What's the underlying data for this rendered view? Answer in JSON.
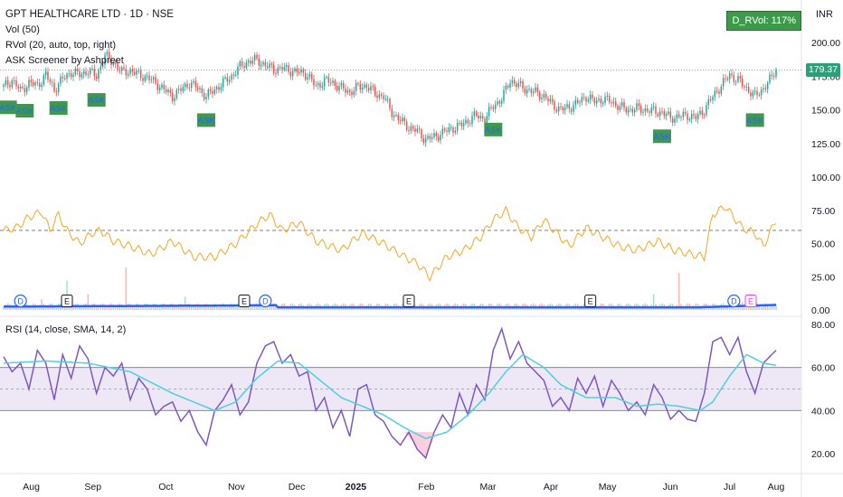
{
  "header": {
    "title": "GPT HEALTHCARE LTD · 1D · NSE",
    "vol_legend": "Vol (50)",
    "rvol_legend": "RVol (20, auto, top, right)",
    "screener_legend": "ASK Screener by Ashpreet",
    "rsi_legend": "RSI (14, close, SMA, 14, 2)",
    "currency": "INR",
    "rvol_badge": "D_RVol: 117%",
    "last_price": "179.37"
  },
  "colors": {
    "up": "#26a69a",
    "down": "#ef5350",
    "rvol_line": "#f5a623",
    "volume_ma": "#2962ff",
    "rsi": "#7e57c2",
    "rsi_ma": "#4dd0e1",
    "rsi_band": "#ede7f6",
    "ask_box": "#3d9a4a",
    "ask_text": "#2962ff"
  },
  "chart_data": {
    "type": "candlestick",
    "x_ticks": [
      "Aug",
      "Sep",
      "Oct",
      "Nov",
      "Dec",
      "2025",
      "Feb",
      "Mar",
      "Apr",
      "May",
      "Jun",
      "Jul",
      "Aug"
    ],
    "price_axis_ticks": [
      "200.00",
      "175.00",
      "150.00",
      "125.00",
      "100.00",
      "75.00",
      "50.00",
      "25.00",
      "0.00"
    ],
    "rsi_axis_ticks": [
      "80.00",
      "60.00",
      "40.00",
      "20.00"
    ],
    "price_keypoints": [
      [
        0,
        167
      ],
      [
        4,
        172
      ],
      [
        8,
        164
      ],
      [
        12,
        170
      ],
      [
        16,
        168
      ],
      [
        20,
        176
      ],
      [
        24,
        165
      ],
      [
        28,
        173
      ],
      [
        32,
        178
      ],
      [
        36,
        176
      ],
      [
        40,
        179
      ],
      [
        44,
        175
      ],
      [
        48,
        190
      ],
      [
        52,
        185
      ],
      [
        56,
        178
      ],
      [
        60,
        179
      ],
      [
        64,
        176
      ],
      [
        68,
        174
      ],
      [
        72,
        170
      ],
      [
        76,
        165
      ],
      [
        80,
        160
      ],
      [
        84,
        165
      ],
      [
        88,
        170
      ],
      [
        92,
        166
      ],
      [
        96,
        160
      ],
      [
        100,
        165
      ],
      [
        104,
        170
      ],
      [
        108,
        175
      ],
      [
        112,
        182
      ],
      [
        116,
        186
      ],
      [
        120,
        187
      ],
      [
        124,
        183
      ],
      [
        128,
        180
      ],
      [
        132,
        181
      ],
      [
        136,
        179
      ],
      [
        140,
        178
      ],
      [
        144,
        176
      ],
      [
        148,
        167
      ],
      [
        152,
        172
      ],
      [
        156,
        170
      ],
      [
        160,
        166
      ],
      [
        164,
        163
      ],
      [
        168,
        167
      ],
      [
        172,
        168
      ],
      [
        176,
        162
      ],
      [
        180,
        160
      ],
      [
        184,
        148
      ],
      [
        188,
        142
      ],
      [
        192,
        137
      ],
      [
        196,
        134
      ],
      [
        200,
        128
      ],
      [
        204,
        130
      ],
      [
        208,
        133
      ],
      [
        212,
        136
      ],
      [
        216,
        138
      ],
      [
        220,
        142
      ],
      [
        224,
        146
      ],
      [
        228,
        143
      ],
      [
        232,
        153
      ],
      [
        236,
        158
      ],
      [
        240,
        172
      ],
      [
        244,
        168
      ],
      [
        248,
        165
      ],
      [
        252,
        163
      ],
      [
        256,
        160
      ],
      [
        260,
        154
      ],
      [
        264,
        150
      ],
      [
        268,
        152
      ],
      [
        272,
        155
      ],
      [
        276,
        160
      ],
      [
        280,
        156
      ],
      [
        284,
        158
      ],
      [
        288,
        156
      ],
      [
        292,
        152
      ],
      [
        296,
        150
      ],
      [
        300,
        151
      ],
      [
        304,
        150
      ],
      [
        308,
        149
      ],
      [
        312,
        148
      ],
      [
        316,
        144
      ],
      [
        320,
        145
      ],
      [
        324,
        146
      ],
      [
        328,
        144
      ],
      [
        332,
        150
      ],
      [
        336,
        160
      ],
      [
        340,
        168
      ],
      [
        344,
        176
      ],
      [
        348,
        172
      ],
      [
        352,
        166
      ],
      [
        356,
        160
      ],
      [
        360,
        166
      ],
      [
        364,
        174
      ],
      [
        366,
        181
      ]
    ],
    "ask_signals": [
      2,
      10,
      26,
      44,
      96,
      232,
      312,
      356
    ],
    "rvol_keypoints": [
      [
        0,
        60
      ],
      [
        6,
        62
      ],
      [
        12,
        70
      ],
      [
        18,
        74
      ],
      [
        22,
        60
      ],
      [
        26,
        72
      ],
      [
        30,
        60
      ],
      [
        36,
        50
      ],
      [
        42,
        58
      ],
      [
        46,
        60
      ],
      [
        52,
        52
      ],
      [
        60,
        48
      ],
      [
        70,
        42
      ],
      [
        80,
        52
      ],
      [
        90,
        40
      ],
      [
        100,
        40
      ],
      [
        110,
        50
      ],
      [
        120,
        65
      ],
      [
        126,
        72
      ],
      [
        132,
        60
      ],
      [
        140,
        66
      ],
      [
        148,
        52
      ],
      [
        160,
        45
      ],
      [
        170,
        58
      ],
      [
        180,
        50
      ],
      [
        190,
        40
      ],
      [
        196,
        35
      ],
      [
        202,
        25
      ],
      [
        210,
        40
      ],
      [
        218,
        45
      ],
      [
        226,
        55
      ],
      [
        232,
        68
      ],
      [
        238,
        75
      ],
      [
        244,
        62
      ],
      [
        250,
        55
      ],
      [
        256,
        68
      ],
      [
        262,
        58
      ],
      [
        268,
        48
      ],
      [
        276,
        62
      ],
      [
        284,
        55
      ],
      [
        292,
        48
      ],
      [
        300,
        45
      ],
      [
        310,
        52
      ],
      [
        318,
        45
      ],
      [
        326,
        42
      ],
      [
        332,
        40
      ],
      [
        336,
        72
      ],
      [
        342,
        78
      ],
      [
        350,
        62
      ],
      [
        356,
        58
      ],
      [
        360,
        48
      ],
      [
        366,
        68
      ]
    ],
    "rvol_dashed_level": 60,
    "volume_spikes": [
      [
        18,
        8
      ],
      [
        30,
        22
      ],
      [
        40,
        12
      ],
      [
        58,
        32
      ],
      [
        86,
        10
      ],
      [
        308,
        12
      ],
      [
        320,
        28
      ],
      [
        350,
        6
      ]
    ],
    "event_markers": [
      {
        "i": 8,
        "label": "D"
      },
      {
        "i": 30,
        "label": "E"
      },
      {
        "i": 114,
        "label": "E"
      },
      {
        "i": 124,
        "label": "D"
      },
      {
        "i": 192,
        "label": "E"
      },
      {
        "i": 278,
        "label": "E"
      },
      {
        "i": 346,
        "label": "D"
      },
      {
        "i": 354,
        "label": "E"
      }
    ],
    "rsi_keypoints": [
      [
        0,
        65
      ],
      [
        4,
        58
      ],
      [
        8,
        62
      ],
      [
        12,
        50
      ],
      [
        16,
        68
      ],
      [
        20,
        62
      ],
      [
        24,
        45
      ],
      [
        28,
        66
      ],
      [
        32,
        55
      ],
      [
        36,
        70
      ],
      [
        40,
        64
      ],
      [
        44,
        48
      ],
      [
        48,
        60
      ],
      [
        52,
        56
      ],
      [
        56,
        62
      ],
      [
        60,
        45
      ],
      [
        64,
        55
      ],
      [
        68,
        50
      ],
      [
        72,
        38
      ],
      [
        76,
        42
      ],
      [
        80,
        44
      ],
      [
        84,
        35
      ],
      [
        88,
        40
      ],
      [
        92,
        30
      ],
      [
        96,
        24
      ],
      [
        100,
        40
      ],
      [
        104,
        45
      ],
      [
        108,
        52
      ],
      [
        112,
        38
      ],
      [
        116,
        44
      ],
      [
        120,
        62
      ],
      [
        124,
        70
      ],
      [
        128,
        72
      ],
      [
        132,
        62
      ],
      [
        136,
        66
      ],
      [
        140,
        56
      ],
      [
        144,
        58
      ],
      [
        148,
        40
      ],
      [
        152,
        46
      ],
      [
        156,
        32
      ],
      [
        160,
        40
      ],
      [
        164,
        28
      ],
      [
        168,
        50
      ],
      [
        172,
        52
      ],
      [
        176,
        38
      ],
      [
        180,
        35
      ],
      [
        184,
        28
      ],
      [
        188,
        24
      ],
      [
        192,
        30
      ],
      [
        196,
        22
      ],
      [
        200,
        18
      ],
      [
        204,
        30
      ],
      [
        208,
        38
      ],
      [
        212,
        32
      ],
      [
        216,
        48
      ],
      [
        220,
        38
      ],
      [
        224,
        52
      ],
      [
        228,
        45
      ],
      [
        232,
        68
      ],
      [
        236,
        78
      ],
      [
        240,
        64
      ],
      [
        244,
        72
      ],
      [
        248,
        62
      ],
      [
        252,
        58
      ],
      [
        256,
        54
      ],
      [
        260,
        42
      ],
      [
        264,
        46
      ],
      [
        268,
        40
      ],
      [
        272,
        55
      ],
      [
        276,
        48
      ],
      [
        280,
        56
      ],
      [
        284,
        42
      ],
      [
        288,
        54
      ],
      [
        292,
        48
      ],
      [
        296,
        40
      ],
      [
        300,
        44
      ],
      [
        304,
        38
      ],
      [
        308,
        52
      ],
      [
        312,
        46
      ],
      [
        316,
        36
      ],
      [
        320,
        40
      ],
      [
        324,
        36
      ],
      [
        328,
        35
      ],
      [
        332,
        48
      ],
      [
        336,
        72
      ],
      [
        340,
        74
      ],
      [
        344,
        66
      ],
      [
        348,
        74
      ],
      [
        352,
        58
      ],
      [
        356,
        48
      ],
      [
        360,
        62
      ],
      [
        366,
        68
      ]
    ],
    "rsi_ma_keypoints": [
      [
        0,
        62
      ],
      [
        20,
        63
      ],
      [
        40,
        62
      ],
      [
        60,
        58
      ],
      [
        80,
        48
      ],
      [
        100,
        40
      ],
      [
        110,
        44
      ],
      [
        120,
        55
      ],
      [
        130,
        63
      ],
      [
        140,
        62
      ],
      [
        150,
        54
      ],
      [
        160,
        46
      ],
      [
        170,
        42
      ],
      [
        180,
        38
      ],
      [
        190,
        32
      ],
      [
        200,
        27
      ],
      [
        210,
        30
      ],
      [
        220,
        38
      ],
      [
        230,
        48
      ],
      [
        238,
        58
      ],
      [
        246,
        66
      ],
      [
        256,
        60
      ],
      [
        264,
        52
      ],
      [
        276,
        46
      ],
      [
        290,
        46
      ],
      [
        300,
        42
      ],
      [
        310,
        43
      ],
      [
        320,
        42
      ],
      [
        330,
        40
      ],
      [
        336,
        44
      ],
      [
        344,
        56
      ],
      [
        352,
        66
      ],
      [
        360,
        62
      ],
      [
        366,
        61
      ]
    ],
    "rsi_levels": {
      "upper": 60,
      "middle": 50,
      "lower": 40
    }
  }
}
